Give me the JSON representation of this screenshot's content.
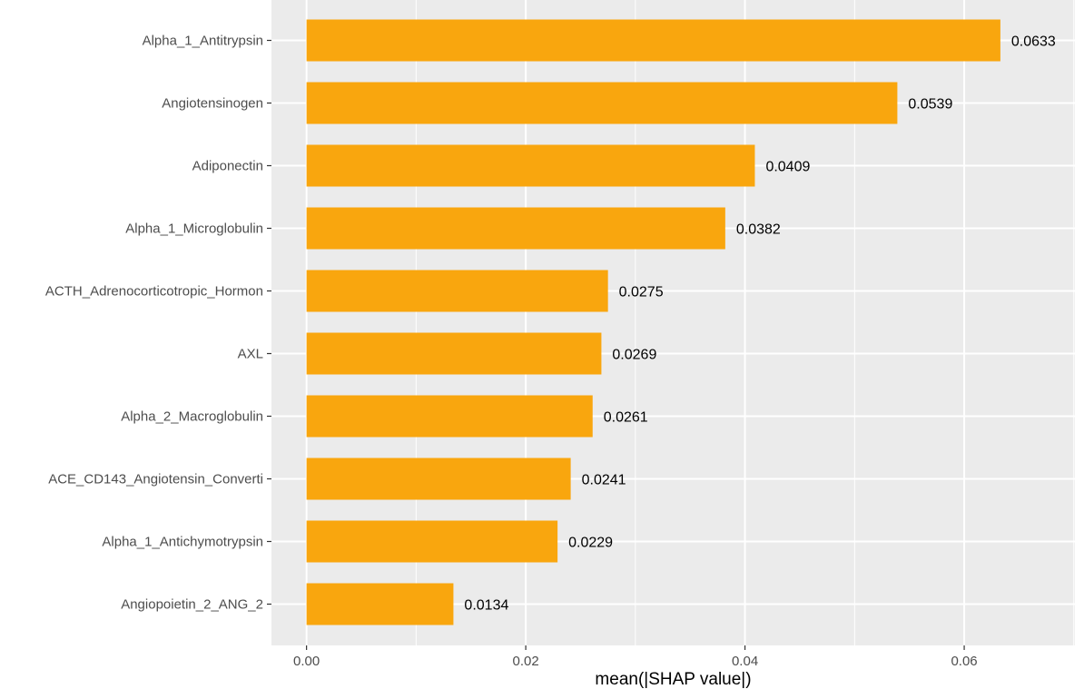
{
  "chart_data": {
    "type": "bar",
    "orientation": "horizontal",
    "title": "",
    "xlabel": "mean(|SHAP value|)",
    "ylabel": "",
    "xlim": [
      -0.0032,
      0.0701
    ],
    "xticks": [
      0.0,
      0.02,
      0.04,
      0.06
    ],
    "xtick_labels": [
      "0.00",
      "0.02",
      "0.04",
      "0.06"
    ],
    "grid": true,
    "bar_color": "#F9A60E",
    "panel_background": "#EBEBEB",
    "categories": [
      "Alpha_1_Antitrypsin",
      "Angiotensinogen",
      "Adiponectin",
      "Alpha_1_Microglobulin",
      "ACTH_Adrenocorticotropic_Hormon",
      "AXL",
      "Alpha_2_Macroglobulin",
      "ACE_CD143_Angiotensin_Converti",
      "Alpha_1_Antichymotrypsin",
      "Angiopoietin_2_ANG_2"
    ],
    "values": [
      0.0633,
      0.0539,
      0.0409,
      0.0382,
      0.0275,
      0.0269,
      0.0261,
      0.0241,
      0.0229,
      0.0134
    ],
    "value_labels": [
      "0.0633",
      "0.0539",
      "0.0409",
      "0.0382",
      "0.0275",
      "0.0269",
      "0.0261",
      "0.0241",
      "0.0229",
      "0.0134"
    ]
  }
}
